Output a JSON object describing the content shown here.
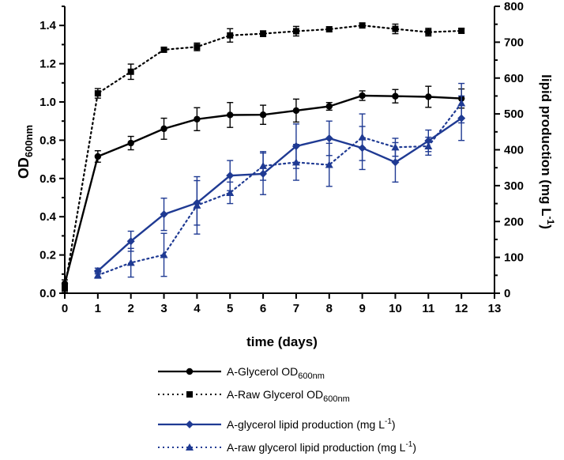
{
  "chart_data": {
    "type": "line",
    "xlabel": "time (days)",
    "ylabel_left": "OD",
    "ylabel_left_sub": "600nm",
    "ylabel_right": "lipid production (mg L",
    "ylabel_right_sup": "-1",
    "ylabel_right_close": ")",
    "xlim": [
      0,
      13
    ],
    "xticks": [
      "0",
      "1",
      "2",
      "3",
      "4",
      "5",
      "6",
      "7",
      "8",
      "9",
      "10",
      "11",
      "12",
      "13"
    ],
    "ylim_left": [
      0,
      1.5
    ],
    "yticks_left": [
      "0.0",
      "0.2",
      "0.4",
      "0.6",
      "0.8",
      "1.0",
      "1.2",
      "1.4"
    ],
    "ylim_right": [
      0,
      800
    ],
    "yticks_right": [
      "0",
      "100",
      "200",
      "300",
      "400",
      "500",
      "600",
      "700",
      "800"
    ],
    "series": [
      {
        "name": "A-Glycerol",
        "name_sub": "OD",
        "name_sub2": "600nm",
        "axis": "left",
        "color": "#000000",
        "dash": "solid",
        "marker": "circle",
        "x": [
          0,
          1,
          2,
          3,
          4,
          5,
          6,
          7,
          8,
          9,
          10,
          11,
          12
        ],
        "y": [
          0.05,
          0.715,
          0.785,
          0.86,
          0.91,
          0.932,
          0.933,
          0.955,
          0.977,
          1.033,
          1.03,
          1.027,
          1.018
        ],
        "err": [
          0.02,
          0.03,
          0.035,
          0.055,
          0.06,
          0.065,
          0.05,
          0.06,
          0.02,
          0.025,
          0.035,
          0.055,
          0.05
        ]
      },
      {
        "name": "A-Raw Glycerol",
        "name_sub": "OD",
        "name_sub2": "600nm",
        "axis": "left",
        "color": "#000000",
        "dash": "dotted",
        "marker": "square",
        "x": [
          0,
          1,
          2,
          3,
          4,
          5,
          6,
          7,
          8,
          9,
          10,
          11,
          12
        ],
        "y": [
          0.028,
          1.045,
          1.158,
          1.273,
          1.288,
          1.348,
          1.357,
          1.37,
          1.38,
          1.4,
          1.382,
          1.365,
          1.372
        ],
        "err": [
          0.02,
          0.025,
          0.04,
          0.012,
          0.02,
          0.035,
          0.015,
          0.025,
          0.012,
          0.012,
          0.025,
          0.02,
          0.012
        ]
      },
      {
        "name": "A-glycerol lipid production (mg L",
        "name_sup": "-1",
        "name_close": ")",
        "axis": "right",
        "color": "#1f3a93",
        "dash": "solid",
        "marker": "diamond",
        "x": [
          1,
          2,
          3,
          4,
          5,
          6,
          7,
          8,
          9,
          10,
          11,
          12
        ],
        "y": [
          62,
          145,
          220,
          252,
          328,
          333,
          410,
          432,
          405,
          365,
          425,
          488
        ],
        "err": [
          8,
          28,
          45,
          62,
          42,
          58,
          62,
          48,
          60,
          55,
          30,
          62
        ]
      },
      {
        "name": "A-raw glycerol lipid production (mg L",
        "name_sup": "-1",
        "name_close": ")",
        "axis": "right",
        "color": "#1f3a93",
        "dash": "dotted",
        "marker": "triangle",
        "x": [
          1,
          2,
          3,
          4,
          5,
          6,
          7,
          8,
          9,
          10,
          11,
          12
        ],
        "y": [
          50,
          85,
          107,
          245,
          280,
          355,
          365,
          358,
          435,
          407,
          410,
          530
        ],
        "err": [
          8,
          40,
          60,
          80,
          30,
          40,
          50,
          60,
          65,
          25,
          25,
          55
        ]
      }
    ]
  }
}
